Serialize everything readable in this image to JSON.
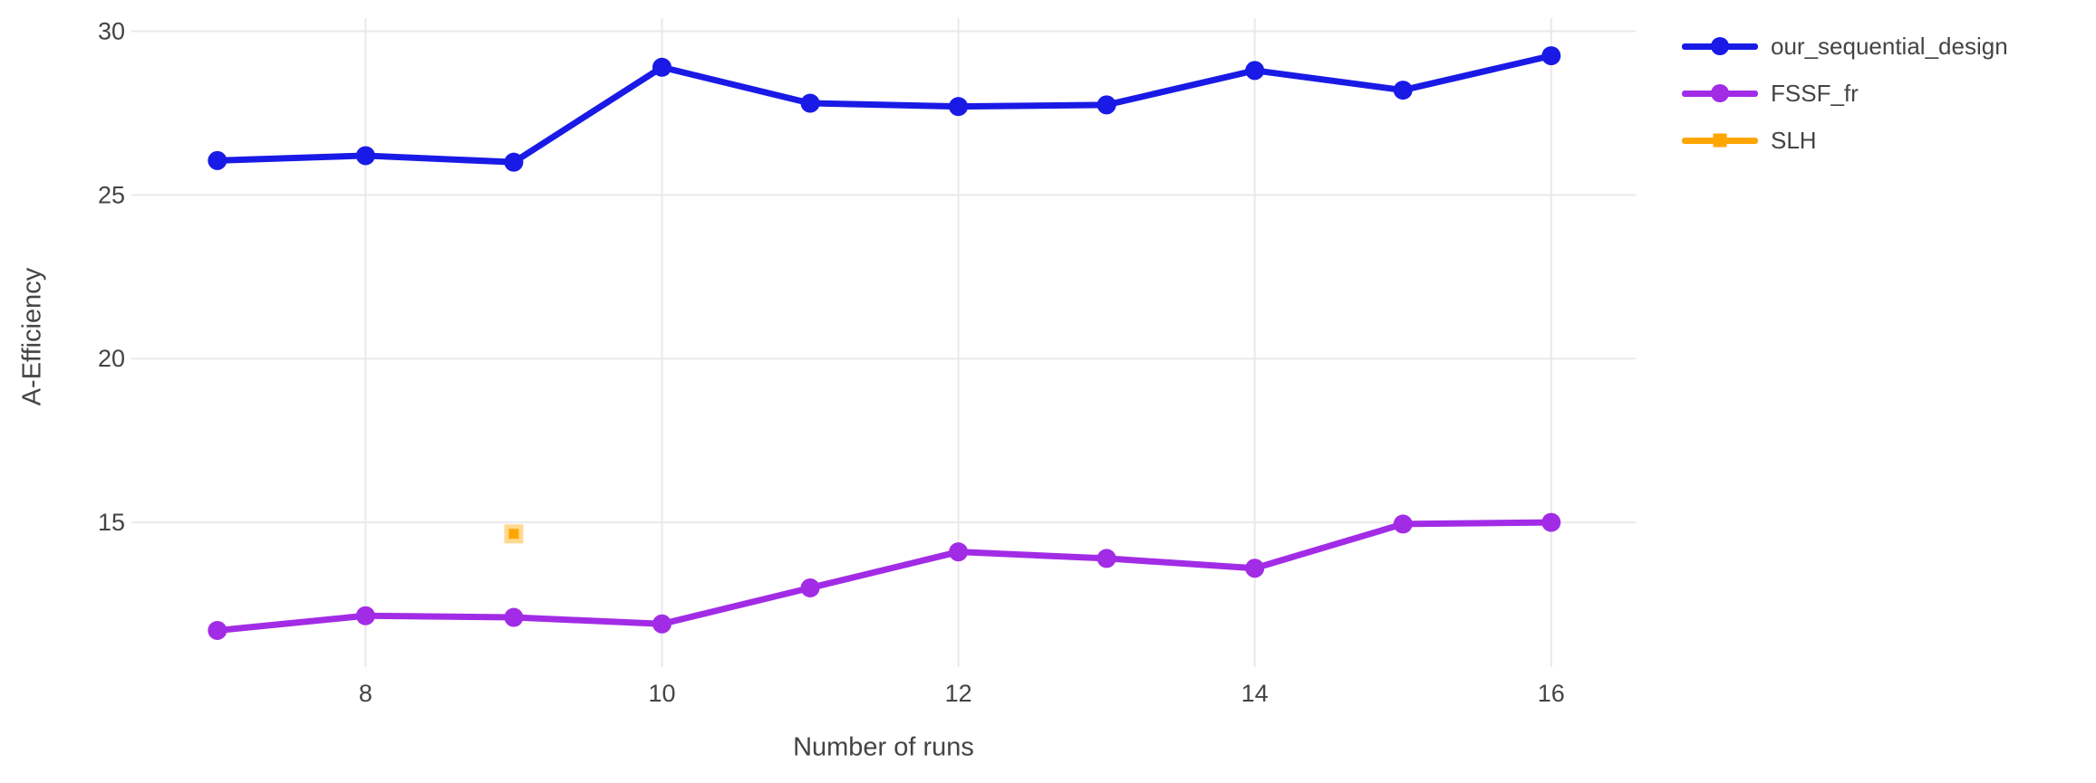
{
  "chart_data": {
    "type": "line",
    "x": [
      7,
      8,
      9,
      10,
      11,
      12,
      13,
      14,
      15,
      16
    ],
    "series": [
      {
        "name": "our_sequential_design",
        "color": "#1a1ae6",
        "marker": "circle",
        "values": [
          26.05,
          26.2,
          26.0,
          28.9,
          27.8,
          27.7,
          27.75,
          28.8,
          28.2,
          29.25
        ]
      },
      {
        "name": "FSSF_fr",
        "color": "#a22ce6",
        "marker": "circle",
        "values": [
          11.7,
          12.15,
          12.1,
          11.9,
          13.0,
          14.1,
          13.9,
          13.6,
          14.95,
          15.0
        ]
      },
      {
        "name": "SLH",
        "color": "#ffa500",
        "marker": "square",
        "values": [
          null,
          null,
          14.65,
          null,
          null,
          null,
          null,
          null,
          null,
          null
        ]
      }
    ],
    "title": "",
    "xlabel": "Number of runs",
    "ylabel": "A-Efficiency",
    "xticks": [
      8,
      10,
      12,
      14,
      16
    ],
    "yticks": [
      15,
      20,
      25,
      30
    ],
    "xlim": [
      6.42,
      16.57
    ],
    "ylim": [
      11.05,
      30.4
    ],
    "grid": "both",
    "legend_position": "right-outside-top"
  },
  "style": {
    "background": "#ffffff",
    "grid_color": "#e9e9e9",
    "text_color": "#444444",
    "tick_font_size": 27,
    "square_halo_color": "#ffd98f"
  }
}
